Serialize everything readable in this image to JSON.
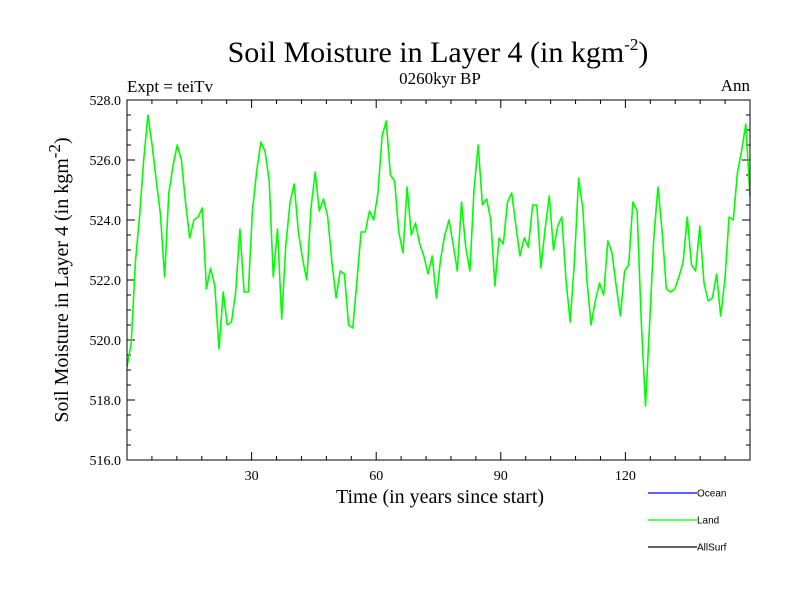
{
  "chart_data": {
    "type": "line",
    "title": "Soil Moisture in Layer 4 (in kgm",
    "title_sup": "-2",
    "title_close": ")",
    "subtitle": "0260kyr BP",
    "left_label": "Expt = teiTv",
    "right_label": "Ann",
    "xlabel": "Time (in years since start)",
    "ylabel": "Soil Moisture in Layer 4 (in kgm",
    "ylabel_sup": "-2",
    "ylabel_close": ")",
    "xlim": [
      0,
      150
    ],
    "ylim": [
      516,
      528
    ],
    "x_ticks": [
      30,
      60,
      90,
      120
    ],
    "x_tick_labels": [
      "30",
      "60",
      "90",
      "120"
    ],
    "y_ticks": [
      516,
      518,
      520,
      522,
      524,
      526,
      528
    ],
    "y_tick_labels": [
      "516.0",
      "518.0",
      "520.0",
      "522.0",
      "524.0",
      "526.0",
      "528.0"
    ],
    "legend": [
      {
        "name": "Ocean",
        "color": "#0000ff"
      },
      {
        "name": "Land",
        "color": "#00ff00"
      },
      {
        "name": "AllSurf",
        "color": "#000000"
      }
    ],
    "series": [
      {
        "name": "Land",
        "color": "#00ff00",
        "values": [
          519.1,
          519.9,
          522.6,
          524.1,
          526.0,
          527.5,
          526.5,
          525.3,
          524.2,
          522.1,
          524.9,
          525.8,
          526.5,
          526.0,
          524.6,
          523.4,
          524.0,
          524.1,
          524.4,
          521.7,
          522.4,
          521.8,
          519.7,
          521.6,
          520.5,
          520.6,
          521.6,
          523.7,
          521.6,
          521.6,
          524.3,
          525.6,
          526.6,
          526.3,
          525.3,
          522.1,
          523.7,
          520.7,
          523.2,
          524.6,
          525.2,
          523.6,
          522.7,
          522.0,
          524.4,
          525.6,
          524.3,
          524.7,
          524.1,
          522.6,
          521.4,
          522.3,
          522.2,
          520.5,
          520.4,
          522.0,
          523.6,
          523.6,
          524.3,
          524.0,
          524.9,
          526.8,
          527.3,
          525.5,
          525.3,
          523.6,
          522.9,
          525.1,
          523.5,
          523.9,
          523.2,
          522.8,
          522.2,
          522.8,
          521.4,
          522.7,
          523.5,
          524.0,
          523.2,
          522.3,
          524.6,
          523.1,
          522.3,
          525.0,
          526.5,
          524.5,
          524.7,
          524.0,
          521.8,
          523.4,
          523.2,
          524.6,
          524.9,
          523.8,
          522.8,
          523.4,
          523.1,
          524.5,
          524.5,
          522.4,
          523.7,
          524.8,
          523.0,
          523.8,
          524.1,
          522.0,
          520.6,
          522.6,
          525.4,
          524.4,
          522.0,
          520.5,
          521.3,
          521.9,
          521.5,
          523.3,
          522.9,
          521.8,
          520.8,
          522.3,
          522.5,
          524.6,
          524.3,
          520.6,
          517.8,
          520.6,
          523.4,
          525.1,
          523.6,
          521.7,
          521.6,
          521.7,
          522.1,
          522.6,
          524.1,
          522.5,
          522.3,
          523.8,
          521.9,
          521.3,
          521.4,
          522.2,
          520.8,
          522.0,
          524.1,
          524.0,
          525.6,
          526.3,
          527.2,
          524.8
        ]
      }
    ]
  }
}
